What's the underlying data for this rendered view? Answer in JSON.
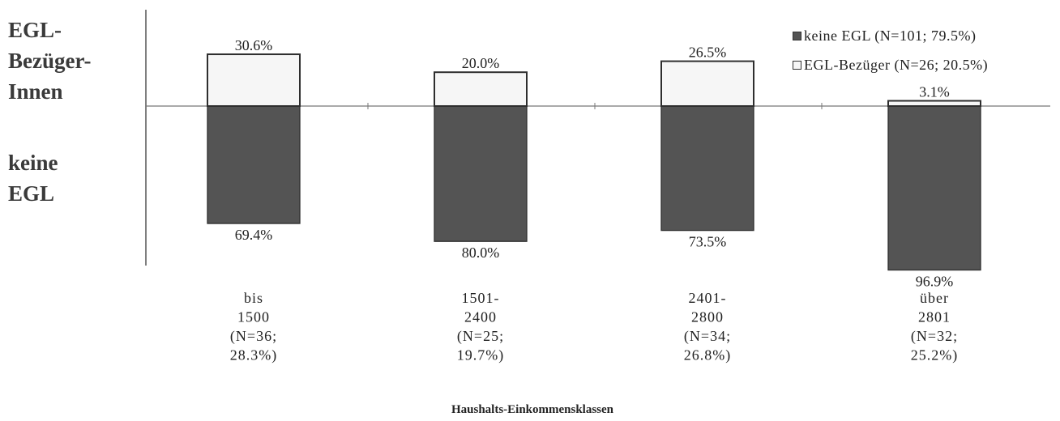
{
  "chart_data": {
    "type": "bar",
    "stacked": true,
    "diverging": true,
    "categories": [
      [
        "bis",
        "1500",
        "(N=36;",
        "28.3%)"
      ],
      [
        "1501-",
        "2400",
        "(N=25;",
        "19.7%)"
      ],
      [
        "2401-",
        "2800",
        "(N=34;",
        "26.8%)"
      ],
      [
        "über",
        "2801",
        "(N=32;",
        "25.2%)"
      ]
    ],
    "series": [
      {
        "name": "keine EGL (N=101; 79.5%)",
        "direction": "down",
        "color": "#545454",
        "values": [
          69.4,
          80.0,
          73.5,
          96.9
        ],
        "labels": [
          "69.4%",
          "80.0%",
          "73.5%",
          "96.9%"
        ]
      },
      {
        "name": "EGL-Bezüger (N=26; 20.5%)",
        "direction": "up",
        "color": "#f6f6f6",
        "values": [
          30.6,
          20.0,
          26.5,
          3.1
        ],
        "labels": [
          "30.6%",
          "20.0%",
          "26.5%",
          "3.1%"
        ]
      }
    ],
    "ylabel_top": [
      "EGL-",
      "Bezüger-",
      "Innen"
    ],
    "ylabel_bottom": [
      "keine",
      "EGL"
    ],
    "xlabel": "Haushalts-Einkommensklassen",
    "legend_position": "top-right",
    "grid": false
  }
}
